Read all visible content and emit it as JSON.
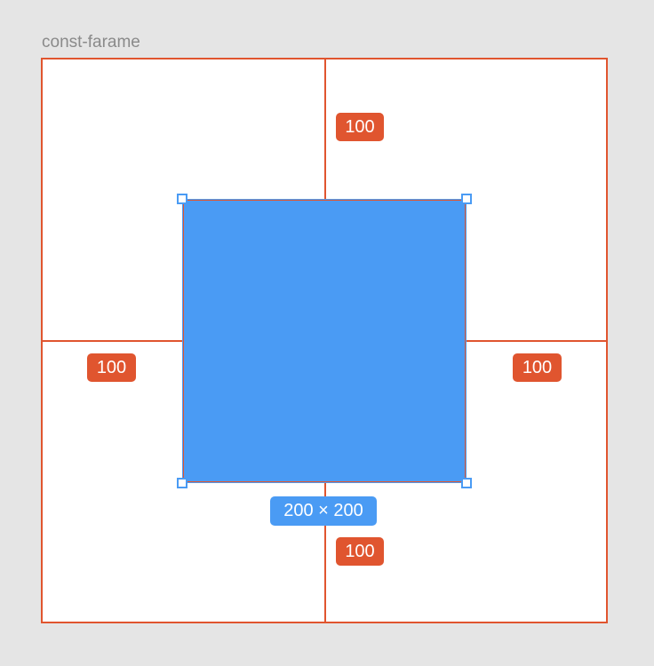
{
  "frame": {
    "name": "const-farame"
  },
  "spacing": {
    "top": "100",
    "left": "100",
    "right": "100",
    "bottom": "100"
  },
  "selection": {
    "size_label": "200 × 200"
  },
  "colors": {
    "background": "#e5e5e5",
    "frame_fill": "#ffffff",
    "guide": "#e0552f",
    "selection": "#4a9bf4",
    "label_text": "#8a8a8a"
  }
}
